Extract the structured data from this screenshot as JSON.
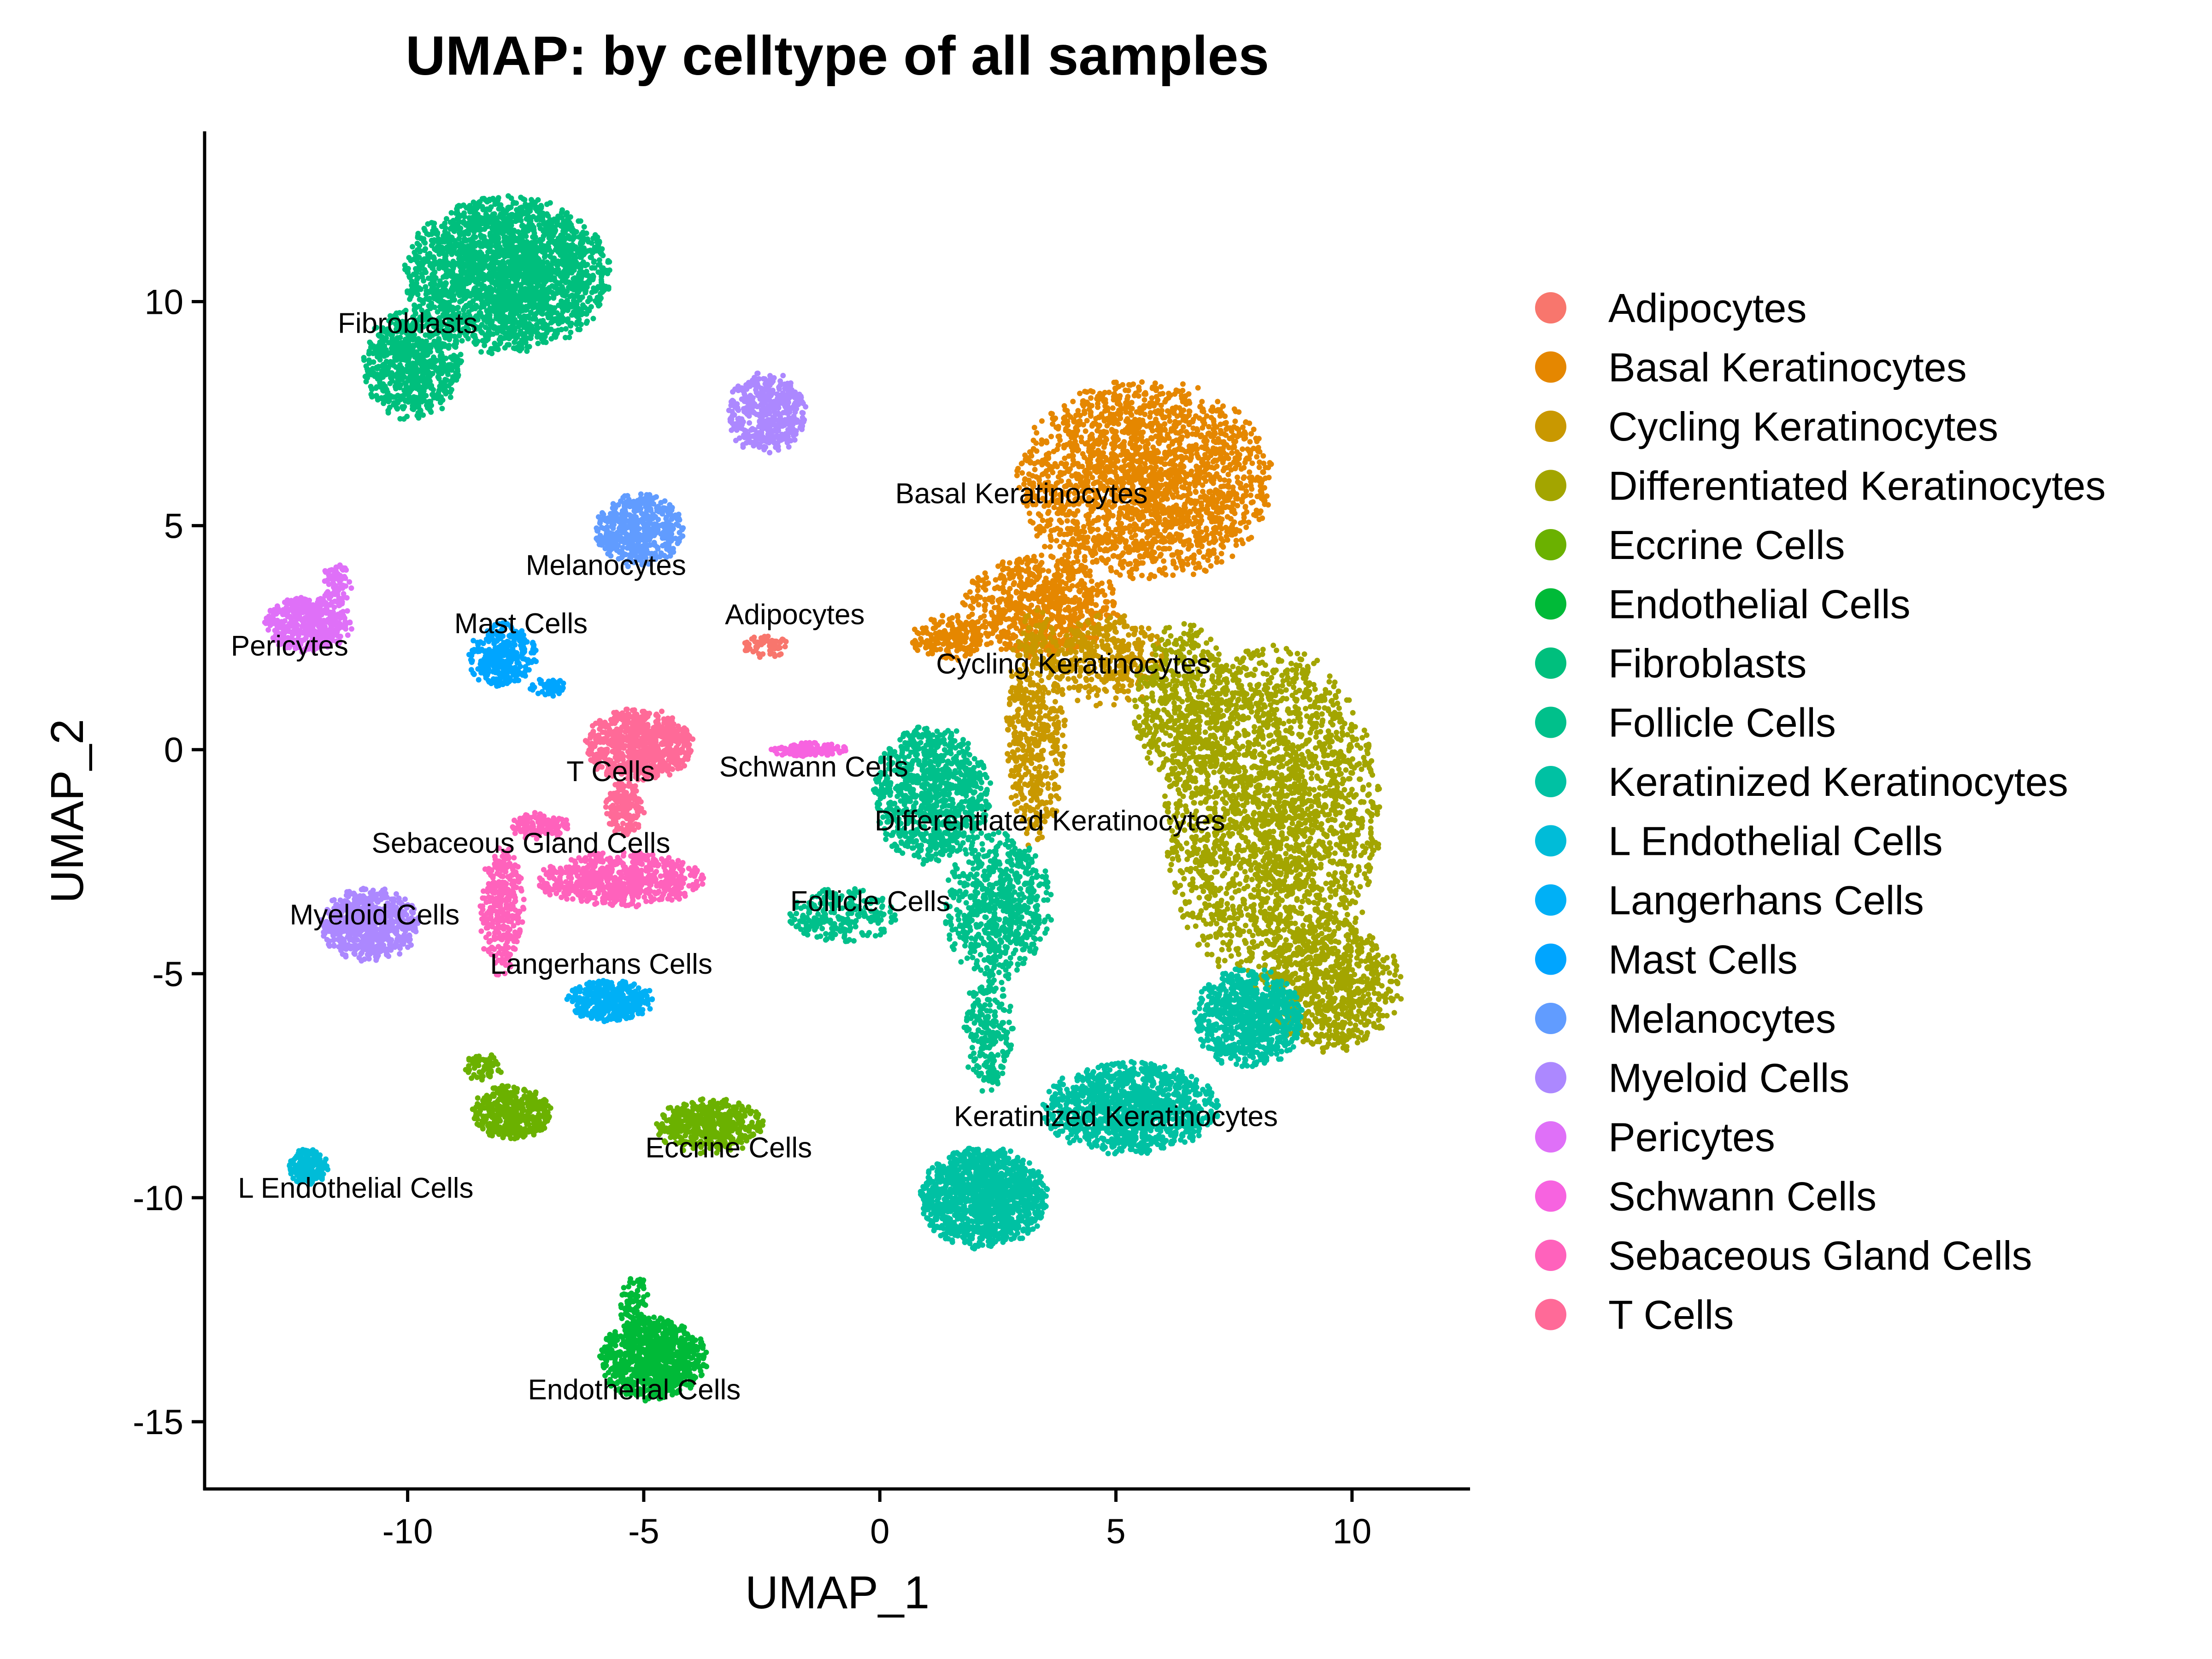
{
  "chart_data": {
    "type": "scatter",
    "title": "UMAP: by celltype of all samples",
    "xlabel": "UMAP_1",
    "ylabel": "UMAP_2",
    "xlim": [
      -14.3,
      12.5
    ],
    "ylim": [
      -16.5,
      13.8
    ],
    "x_ticks": [
      -10,
      -5,
      0,
      5,
      10
    ],
    "y_ticks": [
      -15,
      -10,
      -5,
      0,
      5,
      10
    ],
    "grid": false,
    "legend_position": "right",
    "series": [
      {
        "name": "Adipocytes",
        "color": "#F8766D",
        "label": "Adipocytes",
        "label_pos": [
          -1.8,
          2.8
        ],
        "clusters": [
          {
            "cx": -2.4,
            "cy": 2.3,
            "rx": 0.5,
            "ry": 0.25,
            "n": 60
          }
        ]
      },
      {
        "name": "Basal Keratinocytes",
        "color": "#E58700",
        "label": "Basal Keratinocytes",
        "label_pos": [
          3.0,
          5.5
        ],
        "clusters": [
          {
            "cx": 5.6,
            "cy": 6.0,
            "rx": 2.6,
            "ry": 2.2,
            "n": 2200
          },
          {
            "cx": 3.4,
            "cy": 3.2,
            "rx": 1.6,
            "ry": 1.1,
            "n": 700
          },
          {
            "cx": 1.5,
            "cy": 2.5,
            "rx": 0.8,
            "ry": 0.5,
            "n": 200
          }
        ]
      },
      {
        "name": "Cycling Keratinocytes",
        "color": "#C99800",
        "label": "Cycling Keratinocytes",
        "label_pos": [
          4.1,
          1.7
        ],
        "clusters": [
          {
            "cx": 3.3,
            "cy": 0.5,
            "rx": 0.6,
            "ry": 2.6,
            "n": 500
          },
          {
            "cx": 4.8,
            "cy": 2.0,
            "rx": 1.2,
            "ry": 1.0,
            "n": 350
          }
        ]
      },
      {
        "name": "Differentiated Keratinocytes",
        "color": "#A3A500",
        "label": "Differentiated Keratinocytes",
        "label_pos": [
          3.6,
          -1.8
        ],
        "clusters": [
          {
            "cx": 8.3,
            "cy": -1.5,
            "rx": 2.2,
            "ry": 3.7,
            "n": 3200
          },
          {
            "cx": 9.6,
            "cy": -5.3,
            "rx": 1.4,
            "ry": 1.4,
            "n": 700
          },
          {
            "cx": 6.4,
            "cy": 1.0,
            "rx": 1.0,
            "ry": 1.8,
            "n": 500
          }
        ]
      },
      {
        "name": "Eccrine Cells",
        "color": "#6BB100",
        "label": "Eccrine Cells",
        "label_pos": [
          -3.2,
          -9.1
        ],
        "clusters": [
          {
            "cx": -3.6,
            "cy": -8.4,
            "rx": 1.1,
            "ry": 0.6,
            "n": 450
          },
          {
            "cx": -7.8,
            "cy": -8.1,
            "rx": 0.8,
            "ry": 0.6,
            "n": 400
          },
          {
            "cx": -8.4,
            "cy": -7.1,
            "rx": 0.4,
            "ry": 0.3,
            "n": 60
          }
        ]
      },
      {
        "name": "Endothelial Cells",
        "color": "#00BA38",
        "label": "Endothelial Cells",
        "label_pos": [
          -5.2,
          -14.5
        ],
        "clusters": [
          {
            "cx": -4.8,
            "cy": -13.6,
            "rx": 1.1,
            "ry": 0.9,
            "n": 900
          },
          {
            "cx": -5.2,
            "cy": -12.3,
            "rx": 0.3,
            "ry": 0.7,
            "n": 80
          }
        ]
      },
      {
        "name": "Fibroblasts",
        "color": "#00BF7D",
        "label": "Fibroblasts",
        "label_pos": [
          -10.0,
          9.3
        ],
        "clusters": [
          {
            "cx": -7.9,
            "cy": 10.6,
            "rx": 2.1,
            "ry": 1.7,
            "n": 2800
          },
          {
            "cx": -9.9,
            "cy": 8.6,
            "rx": 1.0,
            "ry": 1.2,
            "n": 700
          }
        ]
      },
      {
        "name": "Follicle Cells",
        "color": "#00C08B",
        "label": "Follicle Cells",
        "label_pos": [
          -0.2,
          -3.6
        ],
        "clusters": [
          {
            "cx": 1.1,
            "cy": -1.0,
            "rx": 1.2,
            "ry": 1.5,
            "n": 900
          },
          {
            "cx": 2.5,
            "cy": -3.5,
            "rx": 1.1,
            "ry": 1.6,
            "n": 650
          },
          {
            "cx": -0.8,
            "cy": -3.7,
            "rx": 1.1,
            "ry": 0.6,
            "n": 220
          },
          {
            "cx": 2.3,
            "cy": -6.3,
            "rx": 0.5,
            "ry": 1.3,
            "n": 220
          }
        ]
      },
      {
        "name": "Keratinized Keratinocytes",
        "color": "#00C1A3",
        "label": "Keratinized Keratinocytes",
        "label_pos": [
          5.0,
          -8.4
        ],
        "clusters": [
          {
            "cx": 2.2,
            "cy": -10.0,
            "rx": 1.3,
            "ry": 1.1,
            "n": 1300
          },
          {
            "cx": 5.3,
            "cy": -8.0,
            "rx": 1.8,
            "ry": 1.0,
            "n": 1200
          },
          {
            "cx": 7.8,
            "cy": -6.0,
            "rx": 1.1,
            "ry": 1.1,
            "n": 800
          }
        ]
      },
      {
        "name": "L Endothelial Cells",
        "color": "#00BCD8",
        "label": "L Endothelial Cells",
        "label_pos": [
          -11.1,
          -10.0
        ],
        "clusters": [
          {
            "cx": -12.1,
            "cy": -9.3,
            "rx": 0.4,
            "ry": 0.4,
            "n": 180
          }
        ]
      },
      {
        "name": "Langerhans Cells",
        "color": "#00B0F6",
        "label": "Langerhans Cells",
        "label_pos": [
          -5.9,
          -5.0
        ],
        "clusters": [
          {
            "cx": -5.7,
            "cy": -5.6,
            "rx": 0.9,
            "ry": 0.45,
            "n": 380
          }
        ]
      },
      {
        "name": "Mast Cells",
        "color": "#00A5FF",
        "label": "Mast Cells",
        "label_pos": [
          -7.6,
          2.6
        ],
        "clusters": [
          {
            "cx": -8.0,
            "cy": 2.1,
            "rx": 0.7,
            "ry": 0.7,
            "n": 320
          },
          {
            "cx": -7.0,
            "cy": 1.4,
            "rx": 0.4,
            "ry": 0.2,
            "n": 50
          }
        ]
      },
      {
        "name": "Melanocytes",
        "color": "#619CFF",
        "label": "Melanocytes",
        "label_pos": [
          -5.8,
          3.9
        ],
        "clusters": [
          {
            "cx": -5.1,
            "cy": 4.9,
            "rx": 0.9,
            "ry": 0.8,
            "n": 480
          }
        ]
      },
      {
        "name": "Myeloid Cells",
        "color": "#AC88FF",
        "label": "Myeloid Cells",
        "label_pos": [
          -10.7,
          -3.9
        ],
        "clusters": [
          {
            "cx": -10.8,
            "cy": -3.9,
            "rx": 1.0,
            "ry": 0.8,
            "n": 650
          },
          {
            "cx": -2.4,
            "cy": 7.5,
            "rx": 0.8,
            "ry": 0.9,
            "n": 450
          }
        ]
      },
      {
        "name": "Pericytes",
        "color": "#DF70F8",
        "label": "Pericytes",
        "label_pos": [
          -12.5,
          2.1
        ],
        "clusters": [
          {
            "cx": -12.1,
            "cy": 2.8,
            "rx": 0.9,
            "ry": 0.6,
            "n": 430
          },
          {
            "cx": -11.5,
            "cy": 3.7,
            "rx": 0.3,
            "ry": 0.5,
            "n": 80
          }
        ]
      },
      {
        "name": "Schwann Cells",
        "color": "#F763E0",
        "label": "Schwann Cells",
        "label_pos": [
          -1.4,
          -0.6
        ],
        "clusters": [
          {
            "cx": -1.5,
            "cy": 0.0,
            "rx": 0.8,
            "ry": 0.15,
            "n": 120
          }
        ]
      },
      {
        "name": "Sebaceous Gland Cells",
        "color": "#FF62BC",
        "label": "Sebaceous Gland Cells",
        "label_pos": [
          -7.6,
          -2.3
        ],
        "clusters": [
          {
            "cx": -5.5,
            "cy": -2.9,
            "rx": 1.7,
            "ry": 0.6,
            "n": 650
          },
          {
            "cx": -8.0,
            "cy": -3.6,
            "rx": 0.45,
            "ry": 1.4,
            "n": 320
          },
          {
            "cx": -7.2,
            "cy": -1.7,
            "rx": 0.6,
            "ry": 0.3,
            "n": 120
          }
        ]
      },
      {
        "name": "T Cells",
        "color": "#FF6A98",
        "label": "T Cells",
        "label_pos": [
          -5.7,
          -0.7
        ],
        "clusters": [
          {
            "cx": -5.1,
            "cy": 0.1,
            "rx": 1.1,
            "ry": 0.8,
            "n": 700
          },
          {
            "cx": -5.4,
            "cy": -1.3,
            "rx": 0.4,
            "ry": 0.6,
            "n": 150
          }
        ]
      }
    ]
  }
}
